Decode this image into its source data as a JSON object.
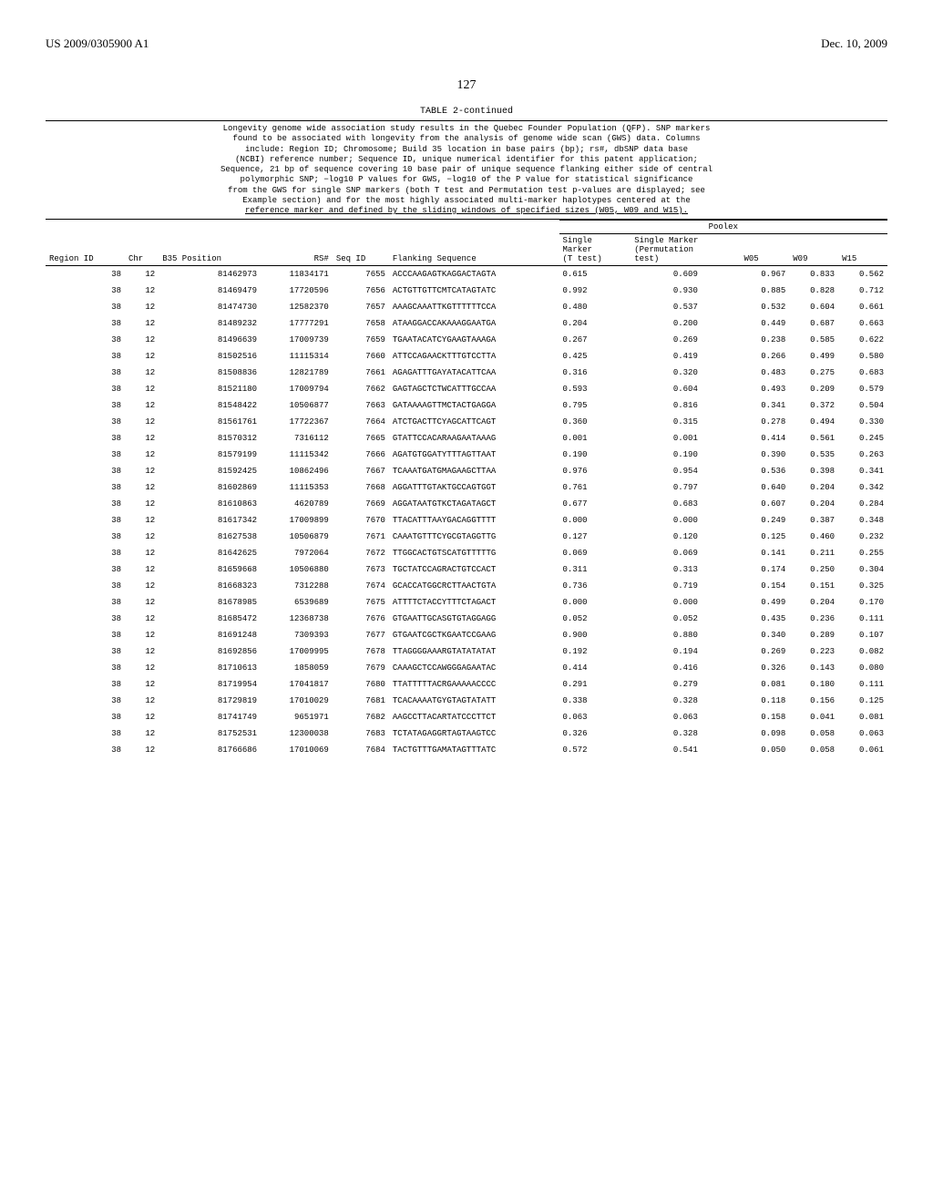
{
  "header": {
    "pub_number": "US 2009/0305900 A1",
    "pub_date": "Dec. 10, 2009",
    "page": "127"
  },
  "table": {
    "title": "TABLE 2-continued",
    "description_lines": [
      "Longevity genome wide association study results in the Quebec Founder Population (QFP). SNP markers",
      "found to be associated with longevity from the analysis of genome wide scan (GWS) data. Columns",
      "include: Region ID; Chromosome; Build 35 location in base pairs (bp); rs#, dbSNP data base",
      "(NCBI) reference number; Sequence ID, unique numerical identifier for this patent application;",
      "Sequence, 21 bp of sequence covering 10 base pair of unique sequence flanking either side of central",
      "polymorphic SNP; −log10 P values for GWS, −log10 of the P value for statistical significance",
      "from the GWS for single SNP markers (both T test and Permutation test p-values are displayed; see",
      "Example section) and for the most highly associated multi-marker haplotypes centered at the"
    ],
    "description_underlined": "reference marker and defined by the sliding windows of specified sizes (W05, W09 and W15).",
    "poolex_label": "Poolex",
    "columns": {
      "region": "Region ID",
      "chr": "Chr",
      "b35": "B35 Position",
      "rs": "RS#",
      "seqid": "Seq ID",
      "flanking": "Flanking Sequence",
      "single_t": "Single\nMarker\n(T test)",
      "single_perm": "Single Marker\n(Permutation\ntest)",
      "w05": "W05",
      "w09": "W09",
      "w15": "W15"
    },
    "rows": [
      {
        "region": 38,
        "chr": 12,
        "b35": 81462973,
        "rs": 11834171,
        "seqid": 7655,
        "seq": "ACCCAAGAGTKAGGACTAGTA",
        "t": 0.615,
        "p": 0.609,
        "w05": 0.967,
        "w09": 0.833,
        "w15": 0.562
      },
      {
        "region": 38,
        "chr": 12,
        "b35": 81469479,
        "rs": 17720596,
        "seqid": 7656,
        "seq": "ACTGTTGTTCMTCATAGTATC",
        "t": 0.992,
        "p": 0.93,
        "w05": 0.885,
        "w09": 0.828,
        "w15": 0.712
      },
      {
        "region": 38,
        "chr": 12,
        "b35": 81474730,
        "rs": 12582370,
        "seqid": 7657,
        "seq": "AAAGCAAATTKGTTTTTTCCA",
        "t": 0.48,
        "p": 0.537,
        "w05": 0.532,
        "w09": 0.604,
        "w15": 0.661
      },
      {
        "region": 38,
        "chr": 12,
        "b35": 81489232,
        "rs": 17777291,
        "seqid": 7658,
        "seq": "ATAAGGACCAKAAAGGAATGA",
        "t": 0.204,
        "p": 0.2,
        "w05": 0.449,
        "w09": 0.687,
        "w15": 0.663
      },
      {
        "region": 38,
        "chr": 12,
        "b35": 81496639,
        "rs": 17009739,
        "seqid": 7659,
        "seq": "TGAATACATCYGAAGTAAAGA",
        "t": 0.267,
        "p": 0.269,
        "w05": 0.238,
        "w09": 0.585,
        "w15": 0.622
      },
      {
        "region": 38,
        "chr": 12,
        "b35": 81502516,
        "rs": 11115314,
        "seqid": 7660,
        "seq": "ATTCCAGAACKTTTGTCCTTA",
        "t": 0.425,
        "p": 0.419,
        "w05": 0.266,
        "w09": 0.499,
        "w15": 0.58
      },
      {
        "region": 38,
        "chr": 12,
        "b35": 81508836,
        "rs": 12821789,
        "seqid": 7661,
        "seq": "AGAGATTTGAYATACATTCAA",
        "t": 0.316,
        "p": 0.32,
        "w05": 0.483,
        "w09": 0.275,
        "w15": 0.683
      },
      {
        "region": 38,
        "chr": 12,
        "b35": 81521180,
        "rs": 17009794,
        "seqid": 7662,
        "seq": "GAGTAGCTCTWCATTTGCCAA",
        "t": 0.593,
        "p": 0.604,
        "w05": 0.493,
        "w09": 0.209,
        "w15": 0.579
      },
      {
        "region": 38,
        "chr": 12,
        "b35": 81548422,
        "rs": 10506877,
        "seqid": 7663,
        "seq": "GATAAAAGTTMCTACTGAGGA",
        "t": 0.795,
        "p": 0.816,
        "w05": 0.341,
        "w09": 0.372,
        "w15": 0.504
      },
      {
        "region": 38,
        "chr": 12,
        "b35": 81561761,
        "rs": 17722367,
        "seqid": 7664,
        "seq": "ATCTGACTTCYAGCATTCAGT",
        "t": 0.36,
        "p": 0.315,
        "w05": 0.278,
        "w09": 0.494,
        "w15": 0.33
      },
      {
        "region": 38,
        "chr": 12,
        "b35": 81570312,
        "rs": 7316112,
        "seqid": 7665,
        "seq": "GTATTCCACARAAGAATAAAG",
        "t": 0.001,
        "p": 0.001,
        "w05": 0.414,
        "w09": 0.561,
        "w15": 0.245
      },
      {
        "region": 38,
        "chr": 12,
        "b35": 81579199,
        "rs": 11115342,
        "seqid": 7666,
        "seq": "AGATGTGGATYTTTAGTTAAT",
        "t": 0.19,
        "p": 0.19,
        "w05": 0.39,
        "w09": 0.535,
        "w15": 0.263
      },
      {
        "region": 38,
        "chr": 12,
        "b35": 81592425,
        "rs": 10862496,
        "seqid": 7667,
        "seq": "TCAAATGATGMAGAAGCTTAA",
        "t": 0.976,
        "p": 0.954,
        "w05": 0.536,
        "w09": 0.398,
        "w15": 0.341
      },
      {
        "region": 38,
        "chr": 12,
        "b35": 81602869,
        "rs": 11115353,
        "seqid": 7668,
        "seq": "AGGATTTGTAKTGCCAGTGGT",
        "t": 0.761,
        "p": 0.797,
        "w05": 0.64,
        "w09": 0.204,
        "w15": 0.342
      },
      {
        "region": 38,
        "chr": 12,
        "b35": 81610863,
        "rs": 4620789,
        "seqid": 7669,
        "seq": "AGGATAATGTKCTAGATAGCT",
        "t": 0.677,
        "p": 0.683,
        "w05": 0.607,
        "w09": 0.204,
        "w15": 0.284
      },
      {
        "region": 38,
        "chr": 12,
        "b35": 81617342,
        "rs": 17009899,
        "seqid": 7670,
        "seq": "TTACATTTAAYGACAGGTTTT",
        "t": 0.0,
        "p": 0.0,
        "w05": 0.249,
        "w09": 0.387,
        "w15": 0.348
      },
      {
        "region": 38,
        "chr": 12,
        "b35": 81627538,
        "rs": 10506879,
        "seqid": 7671,
        "seq": "CAAATGTTTCYGCGTAGGTTG",
        "t": 0.127,
        "p": 0.12,
        "w05": 0.125,
        "w09": 0.46,
        "w15": 0.232
      },
      {
        "region": 38,
        "chr": 12,
        "b35": 81642625,
        "rs": 7972064,
        "seqid": 7672,
        "seq": "TTGGCACTGTSCATGTTTTTG",
        "t": 0.069,
        "p": 0.069,
        "w05": 0.141,
        "w09": 0.211,
        "w15": 0.255
      },
      {
        "region": 38,
        "chr": 12,
        "b35": 81659668,
        "rs": 10506880,
        "seqid": 7673,
        "seq": "TGCTATCCAGRACTGTCCACT",
        "t": 0.311,
        "p": 0.313,
        "w05": 0.174,
        "w09": 0.25,
        "w15": 0.304
      },
      {
        "region": 38,
        "chr": 12,
        "b35": 81668323,
        "rs": 7312288,
        "seqid": 7674,
        "seq": "GCACCATGGCRCTTAACTGTA",
        "t": 0.736,
        "p": 0.719,
        "w05": 0.154,
        "w09": 0.151,
        "w15": 0.325
      },
      {
        "region": 38,
        "chr": 12,
        "b35": 81678985,
        "rs": 6539689,
        "seqid": 7675,
        "seq": "ATTTTCTACCYTTTCTAGACT",
        "t": 0.0,
        "p": 0.0,
        "w05": 0.499,
        "w09": 0.204,
        "w15": 0.17
      },
      {
        "region": 38,
        "chr": 12,
        "b35": 81685472,
        "rs": 12368738,
        "seqid": 7676,
        "seq": "GTGAATTGCASGTGTAGGAGG",
        "t": 0.052,
        "p": 0.052,
        "w05": 0.435,
        "w09": 0.236,
        "w15": 0.111
      },
      {
        "region": 38,
        "chr": 12,
        "b35": 81691248,
        "rs": 7309393,
        "seqid": 7677,
        "seq": "GTGAATCGCTKGAATCCGAAG",
        "t": 0.9,
        "p": 0.88,
        "w05": 0.34,
        "w09": 0.289,
        "w15": 0.107
      },
      {
        "region": 38,
        "chr": 12,
        "b35": 81692856,
        "rs": 17009995,
        "seqid": 7678,
        "seq": "TTAGGGGAAARGTATATATAT",
        "t": 0.192,
        "p": 0.194,
        "w05": 0.269,
        "w09": 0.223,
        "w15": 0.082
      },
      {
        "region": 38,
        "chr": 12,
        "b35": 81710613,
        "rs": 1858059,
        "seqid": 7679,
        "seq": "CAAAGCTCCAWGGGAGAATAC",
        "t": 0.414,
        "p": 0.416,
        "w05": 0.326,
        "w09": 0.143,
        "w15": 0.08
      },
      {
        "region": 38,
        "chr": 12,
        "b35": 81719954,
        "rs": 17041817,
        "seqid": 7680,
        "seq": "TTATTTTTACRGAAAAACCCC",
        "t": 0.291,
        "p": 0.279,
        "w05": 0.081,
        "w09": 0.18,
        "w15": 0.111
      },
      {
        "region": 38,
        "chr": 12,
        "b35": 81729819,
        "rs": 17010029,
        "seqid": 7681,
        "seq": "TCACAAAATGYGTAGTATATT",
        "t": 0.338,
        "p": 0.328,
        "w05": 0.118,
        "w09": 0.156,
        "w15": 0.125
      },
      {
        "region": 38,
        "chr": 12,
        "b35": 81741749,
        "rs": 9651971,
        "seqid": 7682,
        "seq": "AAGCCTTACARTATCCCTTCT",
        "t": 0.063,
        "p": 0.063,
        "w05": 0.158,
        "w09": 0.041,
        "w15": 0.081
      },
      {
        "region": 38,
        "chr": 12,
        "b35": 81752531,
        "rs": 12300038,
        "seqid": 7683,
        "seq": "TCTATAGAGGRTAGTAAGTCC",
        "t": 0.326,
        "p": 0.328,
        "w05": 0.098,
        "w09": 0.058,
        "w15": 0.063
      },
      {
        "region": 38,
        "chr": 12,
        "b35": 81766686,
        "rs": 17010069,
        "seqid": 7684,
        "seq": "TACTGTTTGAMATAGTTTATC",
        "t": 0.572,
        "p": 0.541,
        "w05": 0.05,
        "w09": 0.058,
        "w15": 0.061
      }
    ]
  }
}
